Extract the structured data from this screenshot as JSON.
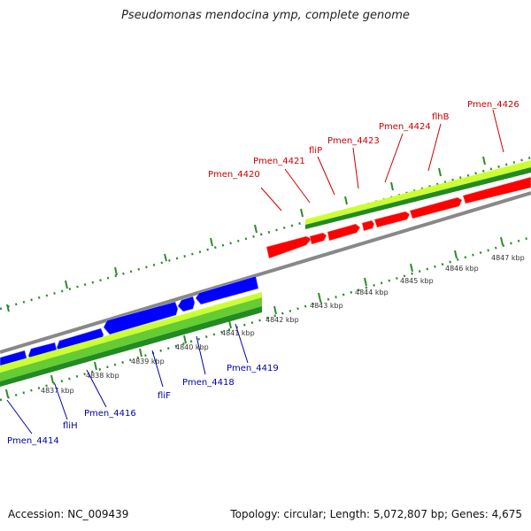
{
  "title": "Pseudomonas mendocina ymp, complete genome",
  "footer": {
    "accession": "Accession: NC_009439",
    "topology": "Topology: circular; Length: 5,072,807 bp; Genes: 4,675"
  },
  "colors": {
    "forward_gene": "#ff0000",
    "reverse_gene": "#0000ff",
    "forward_label": "#cc0000",
    "reverse_label": "#0000aa",
    "backbone": "#888888",
    "track_light": "#ccff33",
    "track_mid": "#66cc33",
    "track_dark": "#228b22",
    "ticks": "#2e8b2e"
  },
  "scale_labels": [
    "4837 kbp",
    "4838 kbp",
    "4839 kbp",
    "4840 kbp",
    "4841 kbp",
    "4842 kbp",
    "4843 kbp",
    "4844 kbp",
    "4845 kbp",
    "4846 kbp",
    "4847 kbp"
  ],
  "forward_genes": [
    "Pmen_4420",
    "Pmen_4421",
    "fliP",
    "Pmen_4423",
    "Pmen_4424",
    "flhB",
    "Pmen_4426"
  ],
  "reverse_genes": [
    "Pmen_4414",
    "fliH",
    "Pmen_4416",
    "fliF",
    "Pmen_4418",
    "Pmen_4419"
  ]
}
